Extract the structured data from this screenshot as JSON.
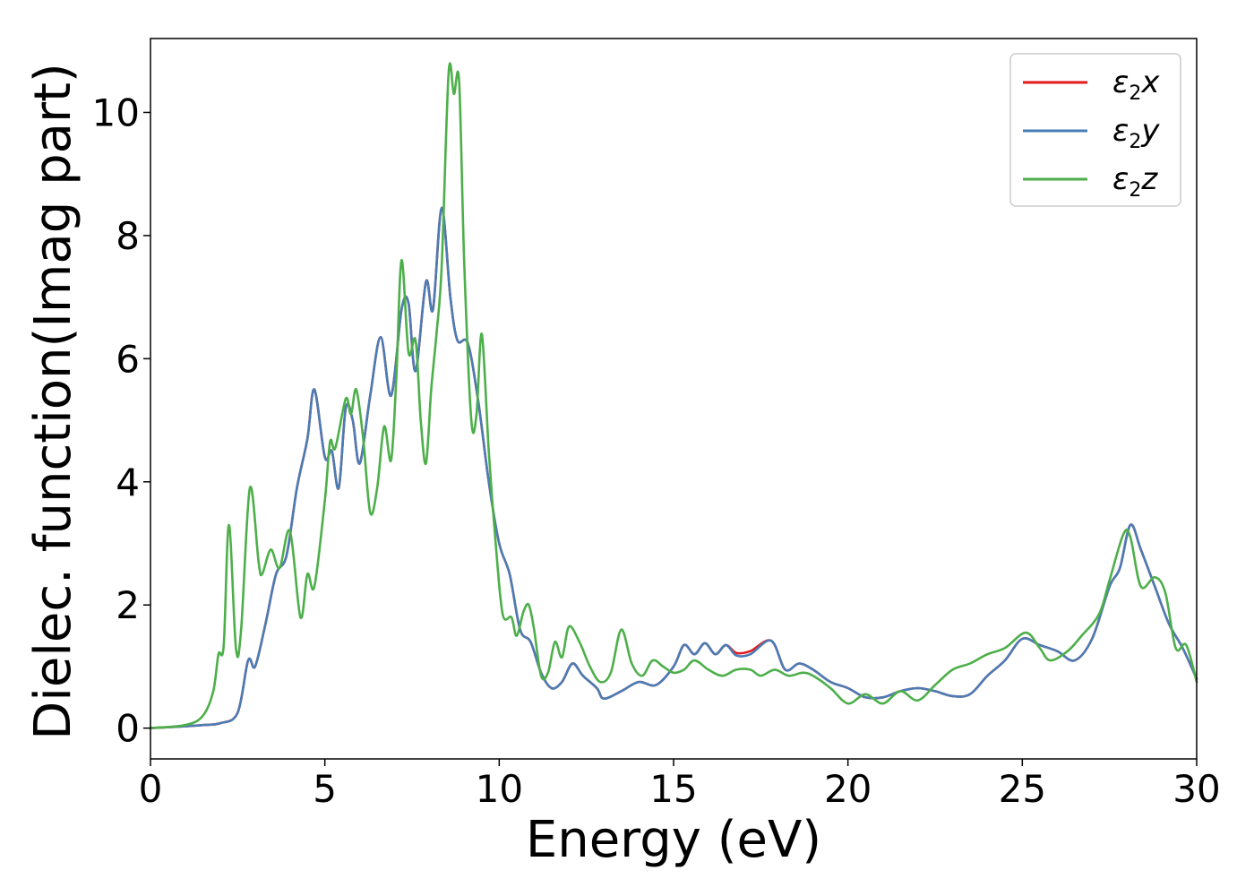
{
  "chart_data": {
    "type": "line",
    "xlabel": "Energy (eV)",
    "ylabel": "Dielec. function(Imag part)",
    "xlim": [
      0,
      30
    ],
    "ylim": [
      -0.5,
      11.2
    ],
    "xticks": [
      "0",
      "5",
      "10",
      "15",
      "20",
      "25",
      "30"
    ],
    "yticks": [
      "0",
      "2",
      "4",
      "6",
      "8",
      "10"
    ],
    "grid": false,
    "legend_position": "top-right",
    "series": [
      {
        "name": "ε2x",
        "symbol": "ε",
        "sub": "2",
        "axis": "x",
        "color": "#e41a1c",
        "points": [
          [
            0,
            0
          ],
          [
            1,
            0.03
          ],
          [
            1.5,
            0.05
          ],
          [
            2,
            0.08
          ],
          [
            2.5,
            0.25
          ],
          [
            2.8,
            1.1
          ],
          [
            3.0,
            1.0
          ],
          [
            3.3,
            1.7
          ],
          [
            3.6,
            2.5
          ],
          [
            3.9,
            2.8
          ],
          [
            4.2,
            3.9
          ],
          [
            4.5,
            4.7
          ],
          [
            4.7,
            5.5
          ],
          [
            5.0,
            4.4
          ],
          [
            5.2,
            4.5
          ],
          [
            5.4,
            3.9
          ],
          [
            5.6,
            5.2
          ],
          [
            5.8,
            5.0
          ],
          [
            6.0,
            4.3
          ],
          [
            6.3,
            5.4
          ],
          [
            6.6,
            6.35
          ],
          [
            6.9,
            5.4
          ],
          [
            7.2,
            6.8
          ],
          [
            7.4,
            6.9
          ],
          [
            7.6,
            5.8
          ],
          [
            7.9,
            7.25
          ],
          [
            8.1,
            6.8
          ],
          [
            8.35,
            8.45
          ],
          [
            8.6,
            7.0
          ],
          [
            8.8,
            6.3
          ],
          [
            9.1,
            6.25
          ],
          [
            9.4,
            5.3
          ],
          [
            9.7,
            4.0
          ],
          [
            10.0,
            3.0
          ],
          [
            10.3,
            2.5
          ],
          [
            10.6,
            1.6
          ],
          [
            10.9,
            1.4
          ],
          [
            11.2,
            0.9
          ],
          [
            11.5,
            0.65
          ],
          [
            11.8,
            0.75
          ],
          [
            12.1,
            1.05
          ],
          [
            12.4,
            0.85
          ],
          [
            12.8,
            0.65
          ],
          [
            13.0,
            0.48
          ],
          [
            13.5,
            0.6
          ],
          [
            14.0,
            0.75
          ],
          [
            14.5,
            0.7
          ],
          [
            15.0,
            1.0
          ],
          [
            15.3,
            1.35
          ],
          [
            15.6,
            1.2
          ],
          [
            15.9,
            1.38
          ],
          [
            16.2,
            1.2
          ],
          [
            16.5,
            1.35
          ],
          [
            16.8,
            1.22
          ],
          [
            17.2,
            1.25
          ],
          [
            17.8,
            1.42
          ],
          [
            18.2,
            0.95
          ],
          [
            18.6,
            1.05
          ],
          [
            19.0,
            0.95
          ],
          [
            19.5,
            0.75
          ],
          [
            20.0,
            0.65
          ],
          [
            20.5,
            0.5
          ],
          [
            21.0,
            0.5
          ],
          [
            21.5,
            0.6
          ],
          [
            22.0,
            0.65
          ],
          [
            22.5,
            0.6
          ],
          [
            23.0,
            0.52
          ],
          [
            23.5,
            0.55
          ],
          [
            24.0,
            0.85
          ],
          [
            24.5,
            1.1
          ],
          [
            25.0,
            1.45
          ],
          [
            25.5,
            1.35
          ],
          [
            26.0,
            1.25
          ],
          [
            26.5,
            1.1
          ],
          [
            27.0,
            1.45
          ],
          [
            27.5,
            2.3
          ],
          [
            27.8,
            2.6
          ],
          [
            28.1,
            3.3
          ],
          [
            28.4,
            2.9
          ],
          [
            28.8,
            2.3
          ],
          [
            29.2,
            1.7
          ],
          [
            29.6,
            1.3
          ],
          [
            30.0,
            0.8
          ]
        ]
      },
      {
        "name": "ε2y",
        "symbol": "ε",
        "sub": "2",
        "axis": "y",
        "color": "#4a7cb5",
        "points": [
          [
            0,
            0
          ],
          [
            1,
            0.03
          ],
          [
            1.5,
            0.05
          ],
          [
            2,
            0.08
          ],
          [
            2.5,
            0.25
          ],
          [
            2.8,
            1.1
          ],
          [
            3.0,
            1.0
          ],
          [
            3.3,
            1.7
          ],
          [
            3.6,
            2.5
          ],
          [
            3.9,
            2.8
          ],
          [
            4.2,
            3.9
          ],
          [
            4.5,
            4.7
          ],
          [
            4.7,
            5.5
          ],
          [
            5.0,
            4.4
          ],
          [
            5.2,
            4.5
          ],
          [
            5.4,
            3.9
          ],
          [
            5.6,
            5.2
          ],
          [
            5.8,
            5.0
          ],
          [
            6.0,
            4.3
          ],
          [
            6.3,
            5.4
          ],
          [
            6.6,
            6.35
          ],
          [
            6.9,
            5.4
          ],
          [
            7.2,
            6.8
          ],
          [
            7.4,
            6.9
          ],
          [
            7.6,
            5.8
          ],
          [
            7.9,
            7.25
          ],
          [
            8.1,
            6.8
          ],
          [
            8.35,
            8.45
          ],
          [
            8.6,
            7.0
          ],
          [
            8.8,
            6.3
          ],
          [
            9.1,
            6.25
          ],
          [
            9.4,
            5.3
          ],
          [
            9.7,
            4.0
          ],
          [
            10.0,
            3.0
          ],
          [
            10.3,
            2.5
          ],
          [
            10.6,
            1.6
          ],
          [
            10.9,
            1.4
          ],
          [
            11.2,
            0.9
          ],
          [
            11.5,
            0.65
          ],
          [
            11.8,
            0.75
          ],
          [
            12.1,
            1.05
          ],
          [
            12.4,
            0.85
          ],
          [
            12.8,
            0.65
          ],
          [
            13.0,
            0.48
          ],
          [
            13.5,
            0.6
          ],
          [
            14.0,
            0.75
          ],
          [
            14.5,
            0.7
          ],
          [
            15.0,
            1.0
          ],
          [
            15.3,
            1.35
          ],
          [
            15.6,
            1.2
          ],
          [
            15.9,
            1.38
          ],
          [
            16.2,
            1.2
          ],
          [
            16.5,
            1.35
          ],
          [
            16.8,
            1.18
          ],
          [
            17.2,
            1.2
          ],
          [
            17.8,
            1.42
          ],
          [
            18.2,
            0.95
          ],
          [
            18.6,
            1.05
          ],
          [
            19.0,
            0.95
          ],
          [
            19.5,
            0.75
          ],
          [
            20.0,
            0.65
          ],
          [
            20.5,
            0.5
          ],
          [
            21.0,
            0.5
          ],
          [
            21.5,
            0.6
          ],
          [
            22.0,
            0.65
          ],
          [
            22.5,
            0.6
          ],
          [
            23.0,
            0.52
          ],
          [
            23.5,
            0.55
          ],
          [
            24.0,
            0.85
          ],
          [
            24.5,
            1.1
          ],
          [
            25.0,
            1.45
          ],
          [
            25.5,
            1.35
          ],
          [
            26.0,
            1.25
          ],
          [
            26.5,
            1.1
          ],
          [
            27.0,
            1.45
          ],
          [
            27.5,
            2.3
          ],
          [
            27.8,
            2.6
          ],
          [
            28.1,
            3.3
          ],
          [
            28.4,
            2.9
          ],
          [
            28.8,
            2.3
          ],
          [
            29.2,
            1.7
          ],
          [
            29.6,
            1.3
          ],
          [
            30.0,
            0.8
          ]
        ]
      },
      {
        "name": "ε2z",
        "symbol": "ε",
        "sub": "2",
        "axis": "z",
        "color": "#4daf4a",
        "points": [
          [
            0,
            0
          ],
          [
            1,
            0.05
          ],
          [
            1.5,
            0.2
          ],
          [
            1.8,
            0.6
          ],
          [
            1.95,
            1.2
          ],
          [
            2.1,
            1.35
          ],
          [
            2.25,
            3.3
          ],
          [
            2.45,
            1.3
          ],
          [
            2.6,
            1.6
          ],
          [
            2.85,
            3.9
          ],
          [
            3.1,
            2.7
          ],
          [
            3.2,
            2.5
          ],
          [
            3.45,
            2.9
          ],
          [
            3.7,
            2.6
          ],
          [
            4.0,
            3.2
          ],
          [
            4.3,
            1.8
          ],
          [
            4.5,
            2.5
          ],
          [
            4.7,
            2.3
          ],
          [
            5.0,
            3.7
          ],
          [
            5.15,
            4.65
          ],
          [
            5.3,
            4.55
          ],
          [
            5.6,
            5.35
          ],
          [
            5.75,
            5.1
          ],
          [
            5.9,
            5.5
          ],
          [
            6.1,
            4.7
          ],
          [
            6.3,
            3.5
          ],
          [
            6.5,
            3.9
          ],
          [
            6.7,
            4.9
          ],
          [
            6.9,
            4.35
          ],
          [
            7.05,
            5.7
          ],
          [
            7.2,
            7.6
          ],
          [
            7.4,
            6.1
          ],
          [
            7.6,
            6.3
          ],
          [
            7.75,
            5.0
          ],
          [
            7.9,
            4.3
          ],
          [
            8.05,
            5.5
          ],
          [
            8.2,
            6.4
          ],
          [
            8.35,
            7.5
          ],
          [
            8.55,
            10.65
          ],
          [
            8.7,
            10.3
          ],
          [
            8.85,
            10.5
          ],
          [
            9.0,
            7.5
          ],
          [
            9.2,
            5.0
          ],
          [
            9.35,
            5.1
          ],
          [
            9.5,
            6.4
          ],
          [
            9.7,
            4.5
          ],
          [
            9.9,
            3.0
          ],
          [
            10.1,
            1.85
          ],
          [
            10.35,
            1.8
          ],
          [
            10.5,
            1.5
          ],
          [
            10.7,
            1.9
          ],
          [
            10.85,
            2.0
          ],
          [
            11.0,
            1.6
          ],
          [
            11.2,
            0.85
          ],
          [
            11.4,
            0.9
          ],
          [
            11.6,
            1.4
          ],
          [
            11.8,
            1.15
          ],
          [
            12.0,
            1.65
          ],
          [
            12.3,
            1.4
          ],
          [
            12.6,
            1.0
          ],
          [
            12.9,
            0.75
          ],
          [
            13.2,
            0.9
          ],
          [
            13.5,
            1.6
          ],
          [
            13.8,
            1.05
          ],
          [
            14.1,
            0.85
          ],
          [
            14.4,
            1.1
          ],
          [
            14.7,
            1.0
          ],
          [
            15.0,
            0.9
          ],
          [
            15.3,
            0.95
          ],
          [
            15.6,
            1.1
          ],
          [
            16.0,
            0.95
          ],
          [
            16.4,
            0.85
          ],
          [
            16.8,
            0.95
          ],
          [
            17.2,
            0.95
          ],
          [
            17.5,
            0.85
          ],
          [
            17.9,
            0.95
          ],
          [
            18.3,
            0.85
          ],
          [
            18.7,
            0.9
          ],
          [
            19.0,
            0.85
          ],
          [
            19.5,
            0.65
          ],
          [
            20.0,
            0.4
          ],
          [
            20.5,
            0.55
          ],
          [
            21.0,
            0.4
          ],
          [
            21.5,
            0.6
          ],
          [
            22.0,
            0.45
          ],
          [
            22.5,
            0.7
          ],
          [
            23.0,
            0.95
          ],
          [
            23.5,
            1.05
          ],
          [
            24.0,
            1.2
          ],
          [
            24.5,
            1.3
          ],
          [
            25.1,
            1.55
          ],
          [
            25.5,
            1.3
          ],
          [
            25.8,
            1.1
          ],
          [
            26.3,
            1.25
          ],
          [
            26.7,
            1.5
          ],
          [
            27.2,
            1.85
          ],
          [
            27.5,
            2.4
          ],
          [
            27.9,
            3.15
          ],
          [
            28.1,
            3.1
          ],
          [
            28.4,
            2.3
          ],
          [
            28.8,
            2.45
          ],
          [
            29.1,
            2.2
          ],
          [
            29.4,
            1.3
          ],
          [
            29.7,
            1.35
          ],
          [
            30.0,
            0.75
          ]
        ]
      }
    ]
  }
}
